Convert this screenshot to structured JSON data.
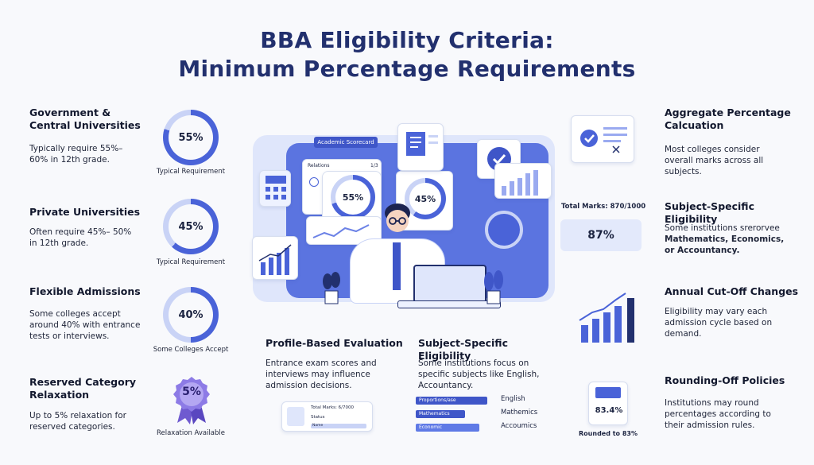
{
  "title": {
    "line1": "BBA Eligibility Criteria:",
    "line2": "Minimum Percentage Requirements"
  },
  "left": [
    {
      "heading": "Government & Central Universities",
      "text": "Typically require 55%–60% in 12th grade.",
      "value": "55%",
      "fraction": 0.8,
      "caption": "Typical Requirement"
    },
    {
      "heading": "Private Universities",
      "text": "Often require 45%– 50% in 12th grade.",
      "value": "45%",
      "fraction": 0.62,
      "caption": "Typical Requirement"
    },
    {
      "heading": "Flexible Admissions",
      "text": "Some colleges accept around 40% with entrance tests or interviews.",
      "value": "40%",
      "fraction": 0.5,
      "caption": "Some Colleges Accept"
    },
    {
      "heading": "Reserved Category Relaxation",
      "text": "Up to 5% relaxation for reserved categories.",
      "value": "5%",
      "caption": "Relaxation Available"
    }
  ],
  "center": {
    "scorecard_label": "Academic Scorecard",
    "screen_header": "Relations",
    "screen_small": "1/3",
    "gauge1": "55%",
    "gauge2": "45%",
    "total_marks": "Total Marks: 870/1000",
    "total_pct": "87%",
    "icons": [
      "calculator-icon",
      "document-icon",
      "badge-icon",
      "line-chart-icon",
      "person-icon",
      "laptop-icon",
      "plant-icon"
    ]
  },
  "profile": {
    "heading": "Profile-Based Evaluation",
    "text": "Entrance exam scores and interviews may influence admission decisions.",
    "card_line1": "Total Marks: 6/7000",
    "card_line2": "Status",
    "card_line3": "Name"
  },
  "subject_center": {
    "heading": "Subject-Specific Eligibility",
    "text": "Some institutions focus on specific subjects like English, Accountancy.",
    "bars": [
      {
        "inner": "Proportions/ase",
        "label": "English",
        "fraction": 0.9
      },
      {
        "inner": "Mathematics",
        "label": "Mathemics",
        "fraction": 0.62
      },
      {
        "inner": "Economic",
        "label": "Accoumics",
        "fraction": 0.8
      }
    ]
  },
  "right": [
    {
      "heading": "Aggregate Percentage Calcuation",
      "text": "Most colleges consider overall marks across all subjects."
    },
    {
      "heading": "Subject-Specific Eligibility",
      "text_pre": "Some institutions srerorvee",
      "text_bold": "Mathematics, Economics, or Accountancy."
    },
    {
      "heading": "Annual Cut-Off Changes",
      "text": "Eligibility may vary each admission cycle based on demand."
    },
    {
      "heading": "Rounding-Off Policies",
      "text": "Institutions may round percentages according to their admission rules."
    }
  ],
  "rounding": {
    "value": "83.4%",
    "caption": "Rounded to 83%"
  },
  "colors": {
    "navy": "#22306e",
    "accent": "#4a63d8",
    "light": "#c9d3f6"
  }
}
